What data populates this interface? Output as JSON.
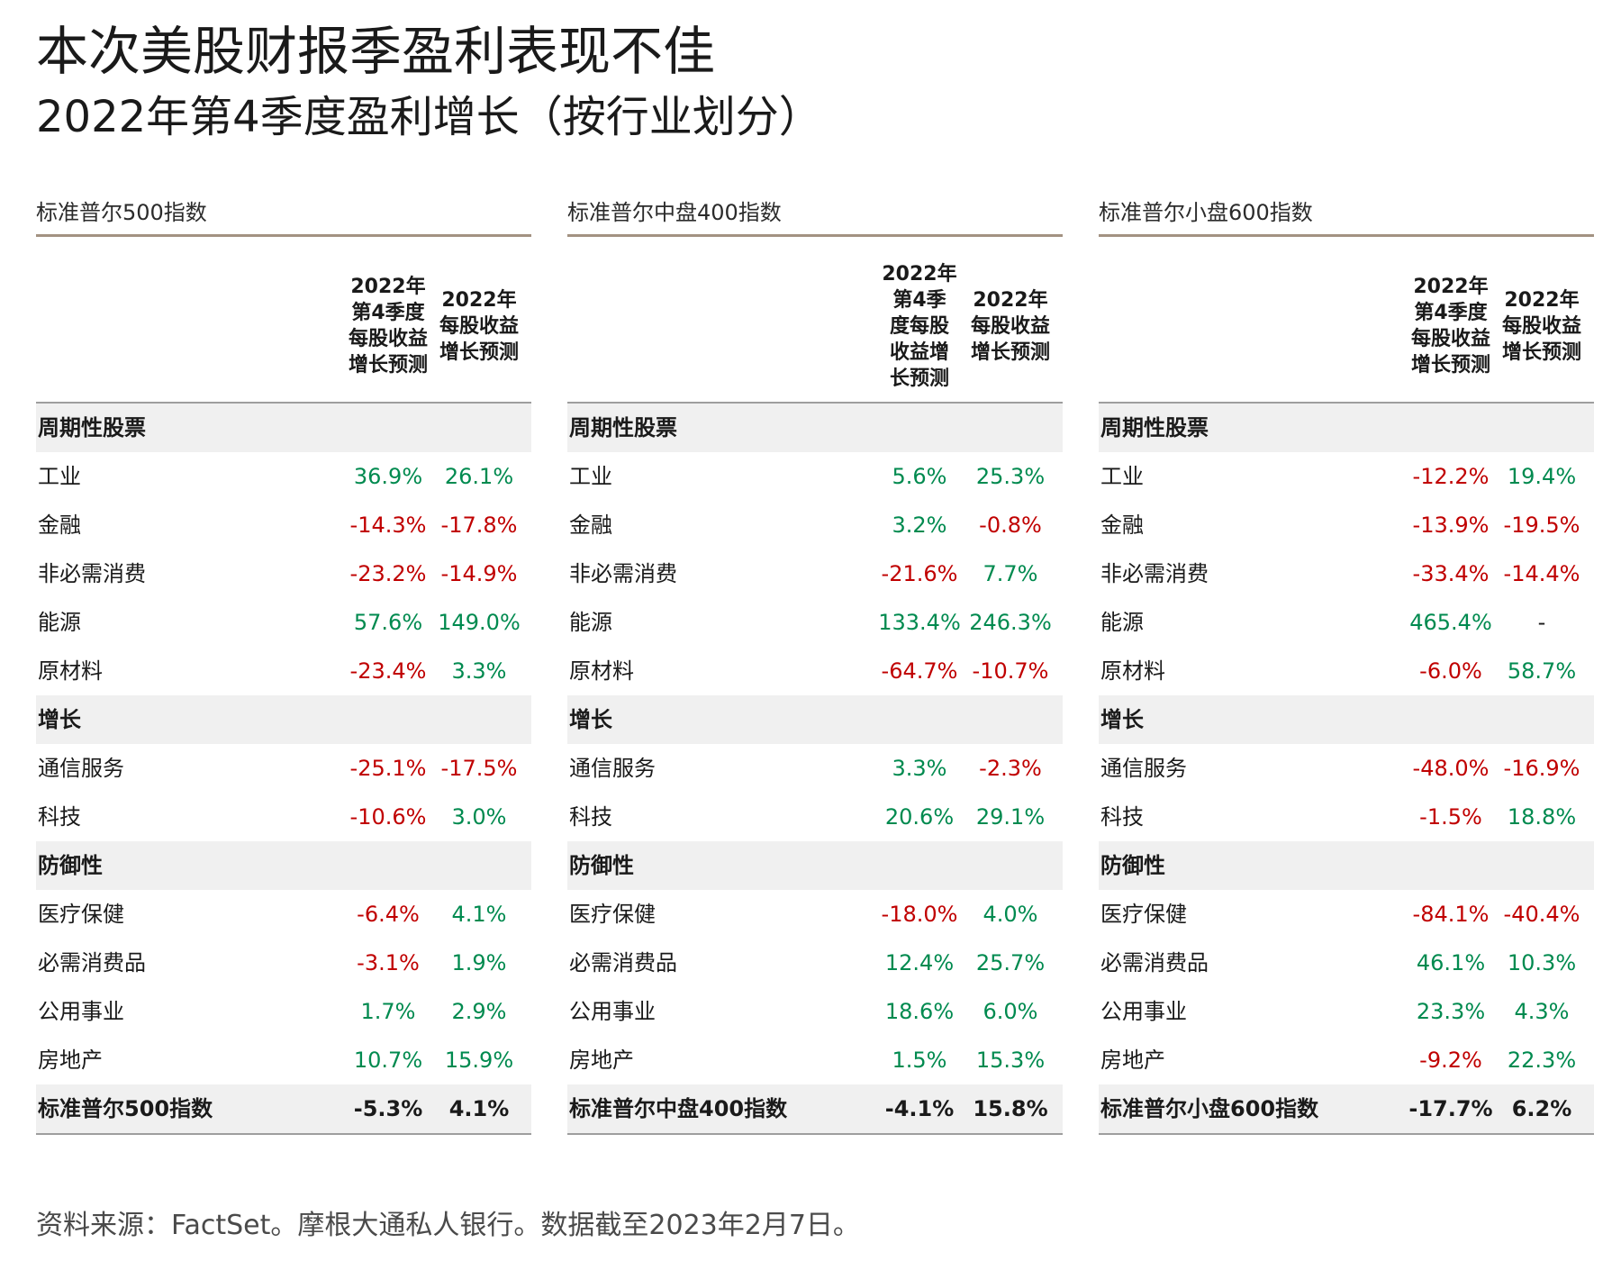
{
  "title": "本次美股财报季盈利表现不佳",
  "subtitle": "2022年第4季度盈利增长（按行业划分）",
  "source": "资料来源：FactSet。摩根大通私人银行。数据截至2023年2月7日。",
  "colors": {
    "positive": "#008a4f",
    "negative": "#c00000",
    "neutral": "#1a1a1a",
    "rule": "#a39282",
    "band": "#f0f0f0"
  },
  "chart_data": [
    {
      "type": "table",
      "title": "标准普尔500指数",
      "col_headers": [
        [
          "2022年",
          "第4季度",
          "每股收益",
          "增长预测"
        ],
        [
          "2022年",
          "每股收益",
          "增长预测"
        ]
      ],
      "rows": [
        {
          "label": "周期性股票",
          "kind": "section"
        },
        {
          "label": "工业",
          "values": [
            "36.9%",
            "26.1%"
          ]
        },
        {
          "label": "金融",
          "values": [
            "-14.3%",
            "-17.8%"
          ]
        },
        {
          "label": "非必需消费",
          "values": [
            "-23.2%",
            "-14.9%"
          ]
        },
        {
          "label": "能源",
          "values": [
            "57.6%",
            "149.0%"
          ]
        },
        {
          "label": "原材料",
          "values": [
            "-23.4%",
            "3.3%"
          ]
        },
        {
          "label": "增长",
          "kind": "section"
        },
        {
          "label": "通信服务",
          "values": [
            "-25.1%",
            "-17.5%"
          ]
        },
        {
          "label": "科技",
          "values": [
            "-10.6%",
            "3.0%"
          ]
        },
        {
          "label": "防御性",
          "kind": "section"
        },
        {
          "label": "医疗保健",
          "values": [
            "-6.4%",
            "4.1%"
          ]
        },
        {
          "label": "必需消费品",
          "values": [
            "-3.1%",
            "1.9%"
          ]
        },
        {
          "label": "公用事业",
          "values": [
            "1.7%",
            "2.9%"
          ]
        },
        {
          "label": "房地产",
          "values": [
            "10.7%",
            "15.9%"
          ]
        },
        {
          "label": "标准普尔500指数",
          "kind": "total",
          "values": [
            "-5.3%",
            "4.1%"
          ]
        }
      ]
    },
    {
      "type": "table",
      "title": "标准普尔中盘400指数",
      "col_headers": [
        [
          "2022年",
          "第4季",
          "度每股",
          "收益增",
          "长预测"
        ],
        [
          "2022年",
          "每股收益",
          "增长预测"
        ]
      ],
      "rows": [
        {
          "label": "周期性股票",
          "kind": "section"
        },
        {
          "label": "工业",
          "values": [
            "5.6%",
            "25.3%"
          ]
        },
        {
          "label": "金融",
          "values": [
            "3.2%",
            "-0.8%"
          ]
        },
        {
          "label": "非必需消费",
          "values": [
            "-21.6%",
            "7.7%"
          ]
        },
        {
          "label": "能源",
          "values": [
            "133.4%",
            "246.3%"
          ]
        },
        {
          "label": "原材料",
          "values": [
            "-64.7%",
            "-10.7%"
          ]
        },
        {
          "label": "增长",
          "kind": "section"
        },
        {
          "label": "通信服务",
          "values": [
            "3.3%",
            "-2.3%"
          ]
        },
        {
          "label": "科技",
          "values": [
            "20.6%",
            "29.1%"
          ]
        },
        {
          "label": "防御性",
          "kind": "section"
        },
        {
          "label": "医疗保健",
          "values": [
            "-18.0%",
            "4.0%"
          ]
        },
        {
          "label": "必需消费品",
          "values": [
            "12.4%",
            "25.7%"
          ]
        },
        {
          "label": "公用事业",
          "values": [
            "18.6%",
            "6.0%"
          ]
        },
        {
          "label": "房地产",
          "values": [
            "1.5%",
            "15.3%"
          ]
        },
        {
          "label": "标准普尔中盘400指数",
          "kind": "total",
          "values": [
            "-4.1%",
            "15.8%"
          ]
        }
      ]
    },
    {
      "type": "table",
      "title": "标准普尔小盘600指数",
      "col_headers": [
        [
          "2022年",
          "第4季度",
          "每股收益",
          "增长预测"
        ],
        [
          "2022年",
          "每股收益",
          "增长预测"
        ]
      ],
      "rows": [
        {
          "label": "周期性股票",
          "kind": "section"
        },
        {
          "label": "工业",
          "values": [
            "-12.2%",
            "19.4%"
          ]
        },
        {
          "label": "金融",
          "values": [
            "-13.9%",
            "-19.5%"
          ]
        },
        {
          "label": "非必需消费",
          "values": [
            "-33.4%",
            "-14.4%"
          ]
        },
        {
          "label": "能源",
          "values": [
            "465.4%",
            "-"
          ]
        },
        {
          "label": "原材料",
          "values": [
            "-6.0%",
            "58.7%"
          ]
        },
        {
          "label": "增长",
          "kind": "section"
        },
        {
          "label": "通信服务",
          "values": [
            "-48.0%",
            "-16.9%"
          ]
        },
        {
          "label": "科技",
          "values": [
            "-1.5%",
            "18.8%"
          ]
        },
        {
          "label": "防御性",
          "kind": "section"
        },
        {
          "label": "医疗保健",
          "values": [
            "-84.1%",
            "-40.4%"
          ]
        },
        {
          "label": "必需消费品",
          "values": [
            "46.1%",
            "10.3%"
          ]
        },
        {
          "label": "公用事业",
          "values": [
            "23.3%",
            "4.3%"
          ]
        },
        {
          "label": "房地产",
          "values": [
            "-9.2%",
            "22.3%"
          ]
        },
        {
          "label": "标准普尔小盘600指数",
          "kind": "total",
          "values": [
            "-17.7%",
            "6.2%"
          ]
        }
      ]
    }
  ]
}
